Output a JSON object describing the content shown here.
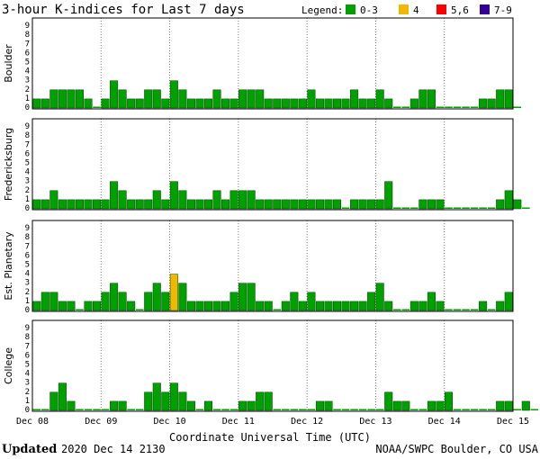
{
  "chart_data": {
    "type": "bar",
    "title": "3-hour K-indices for Last 7 days",
    "legend": {
      "label": "Legend:",
      "placement": "top-right",
      "items": [
        {
          "label": "0-3",
          "color": "#00a000"
        },
        {
          "label": "4",
          "color": "#f0b800"
        },
        {
          "label": "5,6",
          "color": "#ff0000"
        },
        {
          "label": "7-9",
          "color": "#330099"
        }
      ]
    },
    "ylim": [
      0,
      9
    ],
    "yticks": [
      "0",
      "1",
      "2",
      "3",
      "4",
      "5",
      "6",
      "7",
      "8",
      "9"
    ],
    "grid": "vertical dotted at day boundaries",
    "xlabel": "Coordinate Universal Time (UTC)",
    "x_day_labels": [
      "Dec 08",
      "Dec 09",
      "Dec 10",
      "Dec 11",
      "Dec 12",
      "Dec 13",
      "Dec 14",
      "Dec 15"
    ],
    "bins_per_day": 8,
    "panels": [
      {
        "name": "Boulder",
        "values": [
          1,
          1,
          2,
          2,
          2,
          2,
          1,
          0,
          1,
          3,
          2,
          1,
          1,
          2,
          2,
          1,
          3,
          2,
          1,
          1,
          1,
          2,
          1,
          1,
          2,
          2,
          2,
          1,
          1,
          1,
          1,
          1,
          2,
          1,
          1,
          1,
          1,
          2,
          1,
          1,
          2,
          1,
          0,
          0,
          1,
          2,
          2,
          0,
          0,
          0,
          0,
          0,
          1,
          1,
          2,
          2,
          0
        ]
      },
      {
        "name": "Fredericksburg",
        "values": [
          1,
          1,
          2,
          1,
          1,
          1,
          1,
          1,
          1,
          3,
          2,
          1,
          1,
          1,
          2,
          1,
          3,
          2,
          1,
          1,
          1,
          2,
          1,
          2,
          2,
          2,
          1,
          1,
          1,
          1,
          1,
          1,
          1,
          1,
          1,
          1,
          0,
          1,
          1,
          1,
          1,
          3,
          0,
          0,
          0,
          1,
          1,
          1,
          0,
          0,
          0,
          0,
          0,
          0,
          1,
          2,
          1,
          0
        ]
      },
      {
        "name": "Est. Planetary",
        "values": [
          1,
          2,
          2,
          1,
          1,
          0,
          1,
          1,
          2,
          3,
          2,
          1,
          0,
          2,
          3,
          2,
          4,
          3,
          1,
          1,
          1,
          1,
          1,
          2,
          3,
          3,
          1,
          1,
          0,
          1,
          2,
          1,
          2,
          1,
          1,
          1,
          1,
          1,
          1,
          2,
          3,
          1,
          0,
          0,
          1,
          1,
          2,
          1,
          0,
          0,
          0,
          0,
          1,
          0,
          1,
          2
        ]
      },
      {
        "name": "College",
        "values": [
          0,
          0,
          2,
          3,
          1,
          0,
          0,
          0,
          0,
          1,
          1,
          0,
          0,
          2,
          3,
          2,
          3,
          2,
          1,
          0,
          1,
          0,
          0,
          0,
          1,
          1,
          2,
          2,
          0,
          0,
          0,
          0,
          0,
          1,
          1,
          0,
          0,
          0,
          0,
          0,
          0,
          2,
          1,
          1,
          0,
          0,
          1,
          1,
          2,
          0,
          0,
          0,
          0,
          0,
          1,
          1,
          0,
          1,
          0
        ]
      }
    ]
  },
  "footer": {
    "updated_label": "Updated",
    "updated_time": "2020 Dec 14 2130",
    "source": "NOAA/SWPC Boulder, CO USA"
  }
}
